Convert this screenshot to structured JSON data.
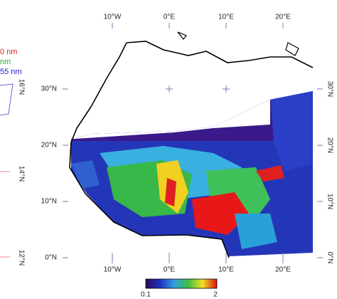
{
  "map": {
    "legend": [
      "0 nm",
      "nm",
      "55 nm"
    ],
    "side_lat_labels": [
      "16°N",
      "14°N",
      "12°N"
    ],
    "lon_labels": [
      "10°W",
      "0°E",
      "10°E",
      "20°E"
    ],
    "lat_labels": [
      "30°N",
      "20°N",
      "10°N",
      "0°N"
    ],
    "colorbar": {
      "min_label": "0.1",
      "max_label": "2"
    }
  }
}
